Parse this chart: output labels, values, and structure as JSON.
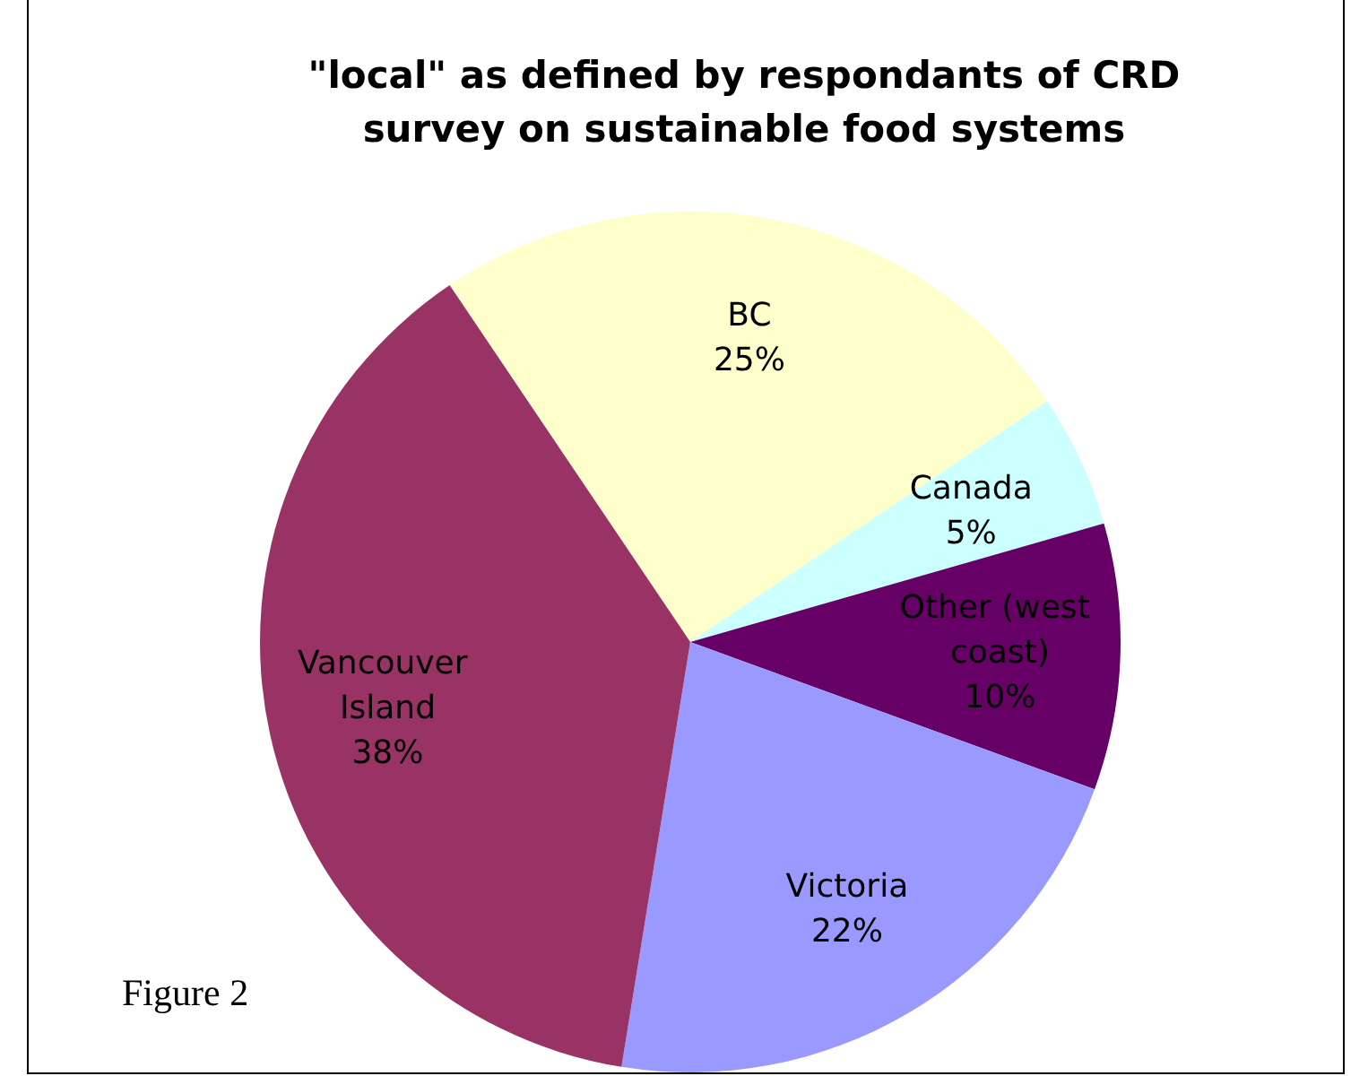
{
  "chart_data": {
    "type": "pie",
    "title": "\"local\" as defined by respondants of CRD\nsurvey on sustainable food systems",
    "categories": [
      "BC",
      "Canada",
      "Other (west coast)",
      "Victoria",
      "Vancouver Island"
    ],
    "values": [
      25,
      5,
      10,
      22,
      38
    ],
    "colors": [
      "#ffffcc",
      "#ccffff",
      "#660066",
      "#9999ff",
      "#993366"
    ],
    "data_labels": true,
    "value_labels": [
      "25%",
      "5%",
      "10%",
      "22%",
      "38%"
    ],
    "legend": false,
    "annotations": [
      "Figure 2"
    ]
  }
}
